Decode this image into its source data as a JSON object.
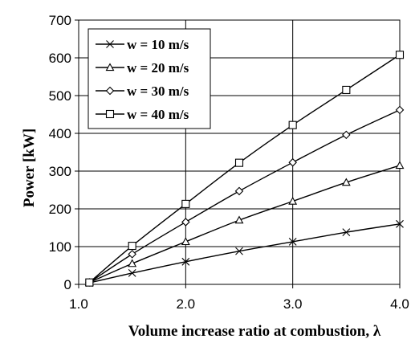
{
  "chart_data": {
    "type": "line",
    "xlabel": "Volume increase ratio at combustion, λ",
    "ylabel": "Power [kW]",
    "xlim": [
      1.0,
      4.0
    ],
    "ylim": [
      0,
      700
    ],
    "x_ticks": [
      "1.0",
      "2.0",
      "3.0",
      "4.0"
    ],
    "y_ticks": [
      "0",
      "100",
      "200",
      "300",
      "400",
      "500",
      "600",
      "700"
    ],
    "grid": true,
    "legend_position": "top-left",
    "series": [
      {
        "name": "w = 10 m/s",
        "marker": "x",
        "x": [
          1.1,
          1.5,
          2.0,
          2.5,
          3.0,
          3.5,
          4.0
        ],
        "y": [
          4,
          30,
          60,
          88,
          113,
          138,
          160
        ]
      },
      {
        "name": "w = 20 m/s",
        "marker": "triangle",
        "x": [
          1.1,
          1.5,
          2.0,
          2.5,
          3.0,
          3.5,
          4.0
        ],
        "y": [
          5,
          55,
          113,
          170,
          220,
          270,
          315
        ]
      },
      {
        "name": "w = 30 m/s",
        "marker": "diamond",
        "x": [
          1.1,
          1.5,
          2.0,
          2.5,
          3.0,
          3.5,
          4.0
        ],
        "y": [
          5,
          80,
          165,
          247,
          323,
          396,
          462
        ]
      },
      {
        "name": "w = 40 m/s",
        "marker": "square",
        "x": [
          1.1,
          1.5,
          2.0,
          2.5,
          3.0,
          3.5,
          4.0
        ],
        "y": [
          5,
          102,
          213,
          322,
          422,
          515,
          608
        ]
      }
    ]
  }
}
